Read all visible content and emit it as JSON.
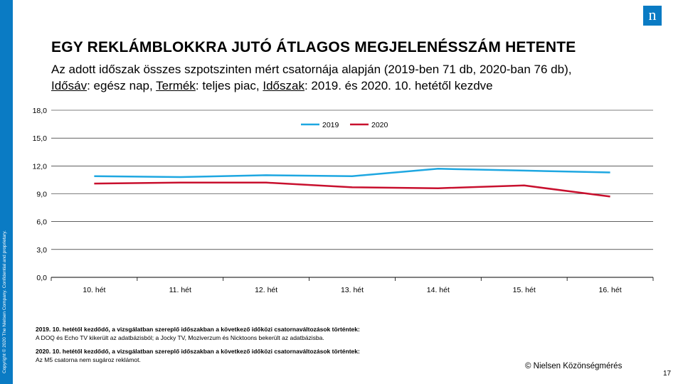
{
  "brand": {
    "logo_letter": "n",
    "sidebar_text": "Copyright © 2020 The Nielsen Company. Confidential and proprietary.",
    "color": "#0a7bc4"
  },
  "slide": {
    "title": "EGY REKLÁMBLOKKRA JUTÓ ÁTLAGOS MEGJELENÉSSZÁM  HETENTE",
    "subtitle_line1": "Az adott időszak összes szpotszinten mért csatornája alapján (2019-ben 71 db, 2020-ban 76 db),",
    "subtitle_line2": {
      "k1": "Idősáv",
      "v1": ": egész nap, ",
      "k2": "Termék",
      "v2": ": teljes piac, ",
      "k3": "Időszak",
      "v3": ": 2019. és 2020. 10. hetétől kezdve"
    },
    "copyright": "© Nielsen Közönségmérés",
    "page_number": "17"
  },
  "notes": {
    "note1_head": "2019. 10. hetétől kezdődő, a vizsgálatban szereplő időszakban a következő időközi csatornaváltozások történtek:",
    "note1_body": "A DOQ és Echo TV kikerült az adatbázisból; a Jocky TV, Moziverzum és Nicktoons bekerült az adatbázisba.",
    "note2_head": "2020. 10. hetétől kezdődő, a vizsgálatban szereplő időszakban a következő időközi csatornaváltozások történtek:",
    "note2_body": "Az M5 csatorna nem sugároz reklámot."
  },
  "chart_data": {
    "type": "line",
    "categories": [
      "10. hét",
      "11. hét",
      "12. hét",
      "13. hét",
      "14. hét",
      "15. hét",
      "16. hét"
    ],
    "series": [
      {
        "name": "2019",
        "color": "#1ea7e1",
        "values": [
          10.9,
          10.8,
          11.0,
          10.9,
          11.7,
          11.5,
          11.3
        ]
      },
      {
        "name": "2020",
        "color": "#c8102e",
        "values": [
          10.1,
          10.2,
          10.2,
          9.7,
          9.6,
          9.9,
          8.7
        ]
      }
    ],
    "ylim": [
      0,
      18
    ],
    "yticks": [
      "0,0",
      "3,0",
      "6,0",
      "9,0",
      "12,0",
      "15,0",
      "18,0"
    ],
    "grid": true,
    "legend": "top-center"
  }
}
